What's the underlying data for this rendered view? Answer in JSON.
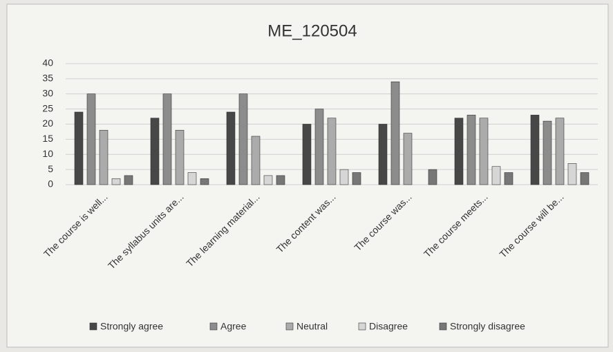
{
  "chart_data": {
    "type": "bar",
    "title": "ME_120504",
    "categories": [
      "The course is well...",
      "The syllabus units are...",
      "The learning material...",
      "The content was...",
      "The course was...",
      "The course meets...",
      "The course will be..."
    ],
    "series": [
      {
        "name": "Strongly agree",
        "color": "#474747",
        "values": [
          24,
          22,
          24,
          20,
          20,
          22,
          23
        ]
      },
      {
        "name": "Agree",
        "color": "#8c8c8c",
        "values": [
          30,
          30,
          30,
          25,
          34,
          23,
          21
        ]
      },
      {
        "name": "Neutral",
        "color": "#ababab",
        "values": [
          18,
          18,
          16,
          22,
          17,
          22,
          22
        ]
      },
      {
        "name": "Disagree",
        "color": "#d6d6d6",
        "values": [
          2,
          4,
          3,
          5,
          0,
          6,
          7
        ]
      },
      {
        "name": "Strongly disagree",
        "color": "#777777",
        "values": [
          3,
          2,
          3,
          4,
          5,
          4,
          4
        ]
      }
    ],
    "ylim": [
      0,
      40
    ],
    "yticks": [
      0,
      5,
      10,
      15,
      20,
      25,
      30,
      35,
      40
    ],
    "grid": true,
    "legend": "bottom"
  }
}
